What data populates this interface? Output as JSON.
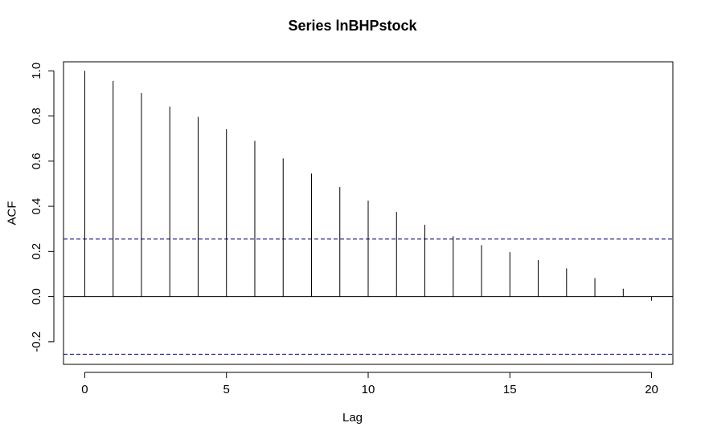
{
  "chart_data": {
    "type": "bar",
    "title": "Series  lnBHPstock",
    "xlabel": "Lag",
    "ylabel": "ACF",
    "x": [
      0,
      1,
      2,
      3,
      4,
      5,
      6,
      7,
      8,
      9,
      10,
      11,
      12,
      13,
      14,
      15,
      16,
      17,
      18,
      19,
      20
    ],
    "values": [
      1.0,
      0.955,
      0.902,
      0.842,
      0.796,
      0.742,
      0.69,
      0.612,
      0.545,
      0.485,
      0.425,
      0.375,
      0.318,
      0.268,
      0.228,
      0.197,
      0.162,
      0.125,
      0.082,
      0.035,
      -0.018
    ],
    "confidence_bound": 0.255,
    "xlim": [
      -0.75,
      20.75
    ],
    "ylim": [
      -0.3,
      1.04
    ],
    "xticks": [
      0,
      5,
      10,
      15,
      20
    ],
    "yticks": [
      -0.2,
      0.0,
      0.2,
      0.4,
      0.6,
      0.8,
      1.0
    ],
    "ytick_labels": [
      "-0.2",
      "0.0",
      "0.2",
      "0.4",
      "0.6",
      "0.8",
      "1.0"
    ],
    "grid": false,
    "colors": {
      "spike": "#000000",
      "confidence": "#00008B",
      "axis": "#000000"
    }
  }
}
